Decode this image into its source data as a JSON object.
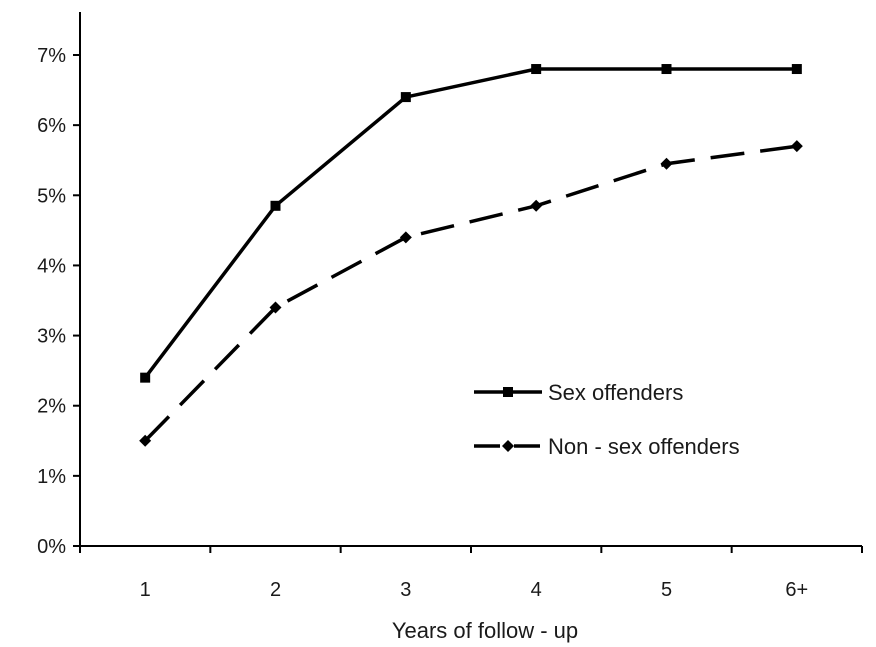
{
  "chart_data": {
    "type": "line",
    "title": "",
    "xlabel": "Years of follow - up",
    "ylabel": "",
    "categories": [
      "1",
      "2",
      "3",
      "4",
      "5",
      "6+"
    ],
    "yticks": [
      "0%",
      "1%",
      "2%",
      "3%",
      "4%",
      "5%",
      "6%",
      "7%"
    ],
    "ylim": [
      0,
      7
    ],
    "grid": false,
    "legend_position": "right",
    "series": [
      {
        "name": "Sex offenders",
        "values": [
          2.4,
          4.85,
          6.4,
          6.8,
          6.8,
          6.8
        ],
        "line_style": "solid",
        "marker": "square",
        "color": "#000000"
      },
      {
        "name": "Non - sex offenders",
        "values": [
          1.5,
          3.4,
          4.4,
          4.85,
          5.45,
          5.7
        ],
        "line_style": "dashed",
        "marker": "diamond",
        "color": "#000000"
      }
    ]
  }
}
